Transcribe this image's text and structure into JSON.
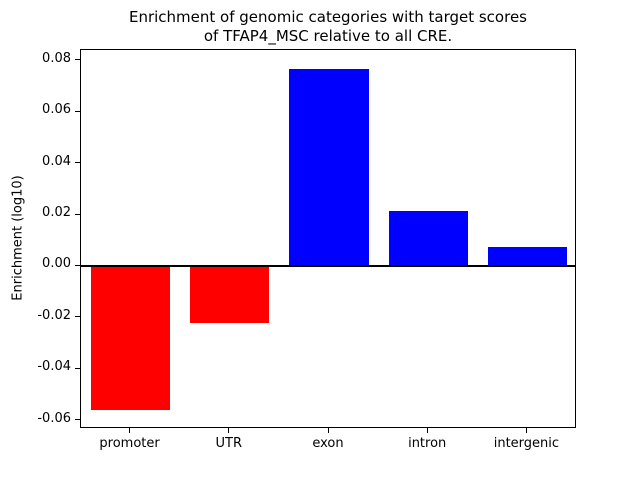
{
  "title": {
    "line1": "Enrichment of genomic categories with target scores",
    "line2": "of TFAP4_MSC relative to all CRE."
  },
  "chart_data": {
    "type": "bar",
    "title": "Enrichment of genomic categories with target scores\nof TFAP4_MSC relative to all CRE.",
    "categories": [
      "promoter",
      "UTR",
      "exon",
      "intron",
      "intergenic"
    ],
    "values": [
      -0.056,
      -0.022,
      0.077,
      0.0215,
      0.0075
    ],
    "xlabel": "",
    "ylabel": "Enrichment (log10)",
    "ylim": [
      -0.0632,
      0.0842
    ],
    "yticks": [
      -0.06,
      -0.04,
      -0.02,
      0.0,
      0.02,
      0.04,
      0.06,
      0.08
    ],
    "grid": false,
    "zero_line": true,
    "legend": "none",
    "positive_color": "#0000ff",
    "negative_color": "#ff0000",
    "bar_colors": [
      "#ff0000",
      "#ff0000",
      "#0000ff",
      "#0000ff",
      "#0000ff"
    ]
  }
}
